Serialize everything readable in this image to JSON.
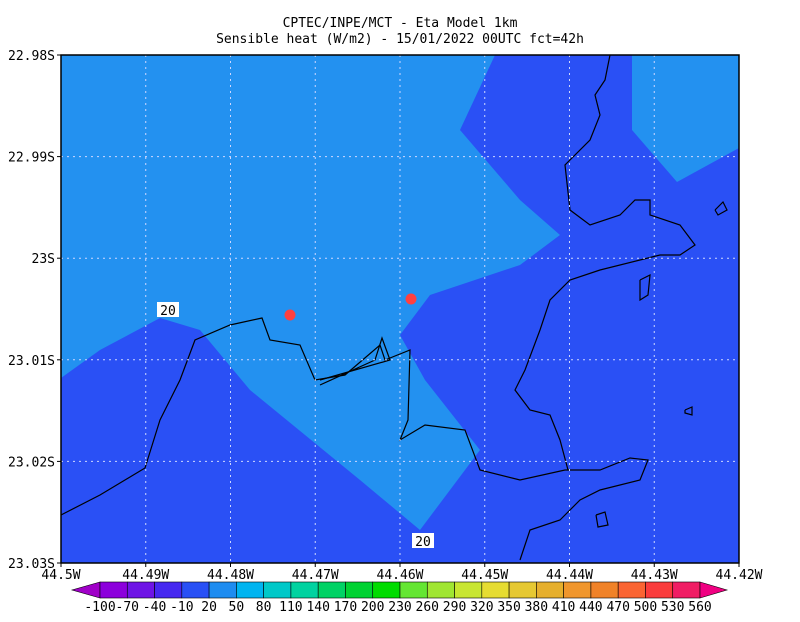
{
  "title": {
    "line1": "CPTEC/INPE/MCT -  Eta Model 1km",
    "line2": "Sensible heat (W/m2) - 15/01/2022 00UTC fct=42h"
  },
  "axes": {
    "x_labels": [
      "44.5W",
      "44.49W",
      "44.48W",
      "44.47W",
      "44.46W",
      "44.45W",
      "44.44W",
      "44.43W",
      "44.42W"
    ],
    "y_labels": [
      "22.98S",
      "22.99S",
      "23S",
      "23.01S",
      "23.02S",
      "23.03S"
    ]
  },
  "contour_labels": [
    "20",
    "20"
  ],
  "colorbar": {
    "labels": [
      "-100",
      "-70",
      "-40",
      "-10",
      "20",
      "50",
      "80",
      "110",
      "140",
      "170",
      "200",
      "230",
      "260",
      "290",
      "320",
      "350",
      "380",
      "410",
      "440",
      "470",
      "500",
      "530",
      "560"
    ],
    "colors": [
      "#a000c8",
      "#8c00dc",
      "#6e14e6",
      "#4628f0",
      "#2850f5",
      "#1e8cf0",
      "#00b4f0",
      "#00c8c8",
      "#00d2a0",
      "#00d264",
      "#00d232",
      "#00dc00",
      "#64e632",
      "#a0e632",
      "#c8e632",
      "#e6dc32",
      "#e6c832",
      "#e6af2d",
      "#f0962d",
      "#f08228",
      "#fa6432",
      "#fa3c3c",
      "#f01e64",
      "#f00082"
    ]
  }
}
